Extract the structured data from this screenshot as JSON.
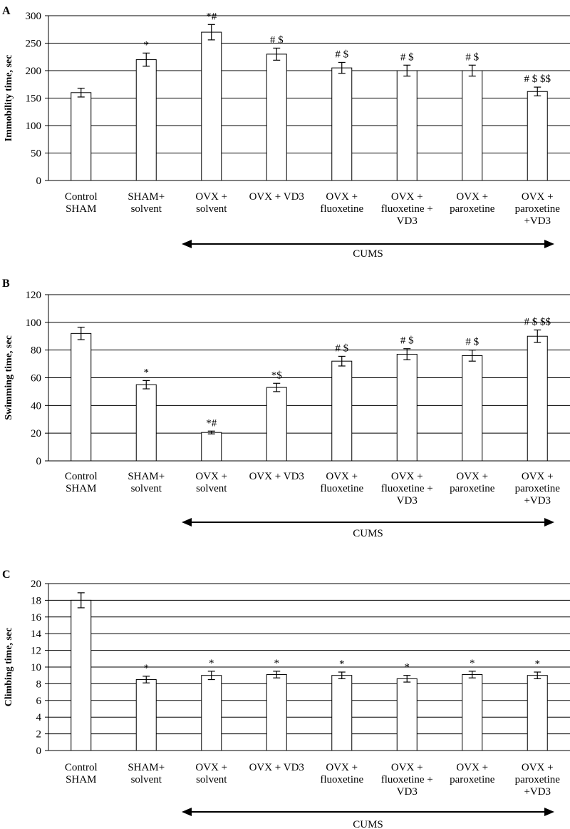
{
  "chart_data": [
    {
      "type": "bar",
      "panel": "A",
      "ylabel": "Immobility time, sec",
      "ylim": [
        0,
        300
      ],
      "yticks": [
        "0",
        "50",
        "100",
        "150",
        "200",
        "250",
        "300"
      ],
      "grid": true,
      "categories": [
        [
          "Control",
          "SHAM"
        ],
        [
          "SHAM+",
          "solvent"
        ],
        [
          "OVX +",
          "solvent"
        ],
        [
          "OVX + VD3"
        ],
        [
          "OVX +",
          "fluoxetine"
        ],
        [
          "OVX +",
          "fluoxetine +",
          "VD3"
        ],
        [
          "OVX +",
          "paroxetine"
        ],
        [
          "OVX +",
          "paroxetine",
          "+VD3"
        ]
      ],
      "values": [
        160,
        220,
        270,
        230,
        205,
        200,
        200,
        162
      ],
      "errors": [
        8,
        12,
        14,
        11,
        10,
        10,
        10,
        8
      ],
      "annotations": [
        "",
        "*",
        "*#",
        "# $",
        "# $",
        "# $",
        "# $",
        "# $ $$"
      ],
      "bracket_label": "CUMS"
    },
    {
      "type": "bar",
      "panel": "B",
      "ylabel": "Swimming time, sec",
      "ylim": [
        0,
        120
      ],
      "yticks": [
        "0",
        "20",
        "40",
        "60",
        "80",
        "100",
        "120"
      ],
      "grid": true,
      "categories": [
        [
          "Control",
          "SHAM"
        ],
        [
          "SHAM+",
          "solvent"
        ],
        [
          "OVX +",
          "solvent"
        ],
        [
          "OVX + VD3"
        ],
        [
          "OVX +",
          "fluoxetine"
        ],
        [
          "OVX +",
          "fluoxetine +",
          "VD3"
        ],
        [
          "OVX +",
          "paroxetine"
        ],
        [
          "OVX +",
          "paroxetine",
          "+VD3"
        ]
      ],
      "values": [
        92,
        55,
        20.5,
        53,
        72,
        77,
        76,
        90
      ],
      "errors": [
        4.5,
        3,
        1,
        3,
        3.5,
        4,
        4,
        4.5
      ],
      "annotations": [
        "",
        "*",
        "*#",
        "*$",
        "# $",
        "# $",
        "# $",
        "# $ $$"
      ],
      "bracket_label": "CUMS"
    },
    {
      "type": "bar",
      "panel": "C",
      "ylabel": "Climbing time, sec",
      "ylim": [
        0,
        20
      ],
      "yticks": [
        "0",
        "2",
        "4",
        "6",
        "8",
        "10",
        "12",
        "14",
        "16",
        "18",
        "20"
      ],
      "grid": true,
      "categories": [
        [
          "Control",
          "SHAM"
        ],
        [
          "SHAM+",
          "solvent"
        ],
        [
          "OVX +",
          "solvent"
        ],
        [
          "OVX + VD3"
        ],
        [
          "OVX +",
          "fluoxetine"
        ],
        [
          "OVX +",
          "fluoxetine +",
          "VD3"
        ],
        [
          "OVX +",
          "paroxetine"
        ],
        [
          "OVX +",
          "paroxetine",
          "+VD3"
        ]
      ],
      "values": [
        18,
        8.5,
        9,
        9.1,
        9,
        8.6,
        9.1,
        9
      ],
      "errors": [
        0.9,
        0.4,
        0.5,
        0.4,
        0.4,
        0.4,
        0.4,
        0.4
      ],
      "annotations": [
        "",
        "*",
        "*",
        "*",
        "*",
        "*",
        "*",
        "*"
      ],
      "bracket_label": "CUMS"
    }
  ]
}
